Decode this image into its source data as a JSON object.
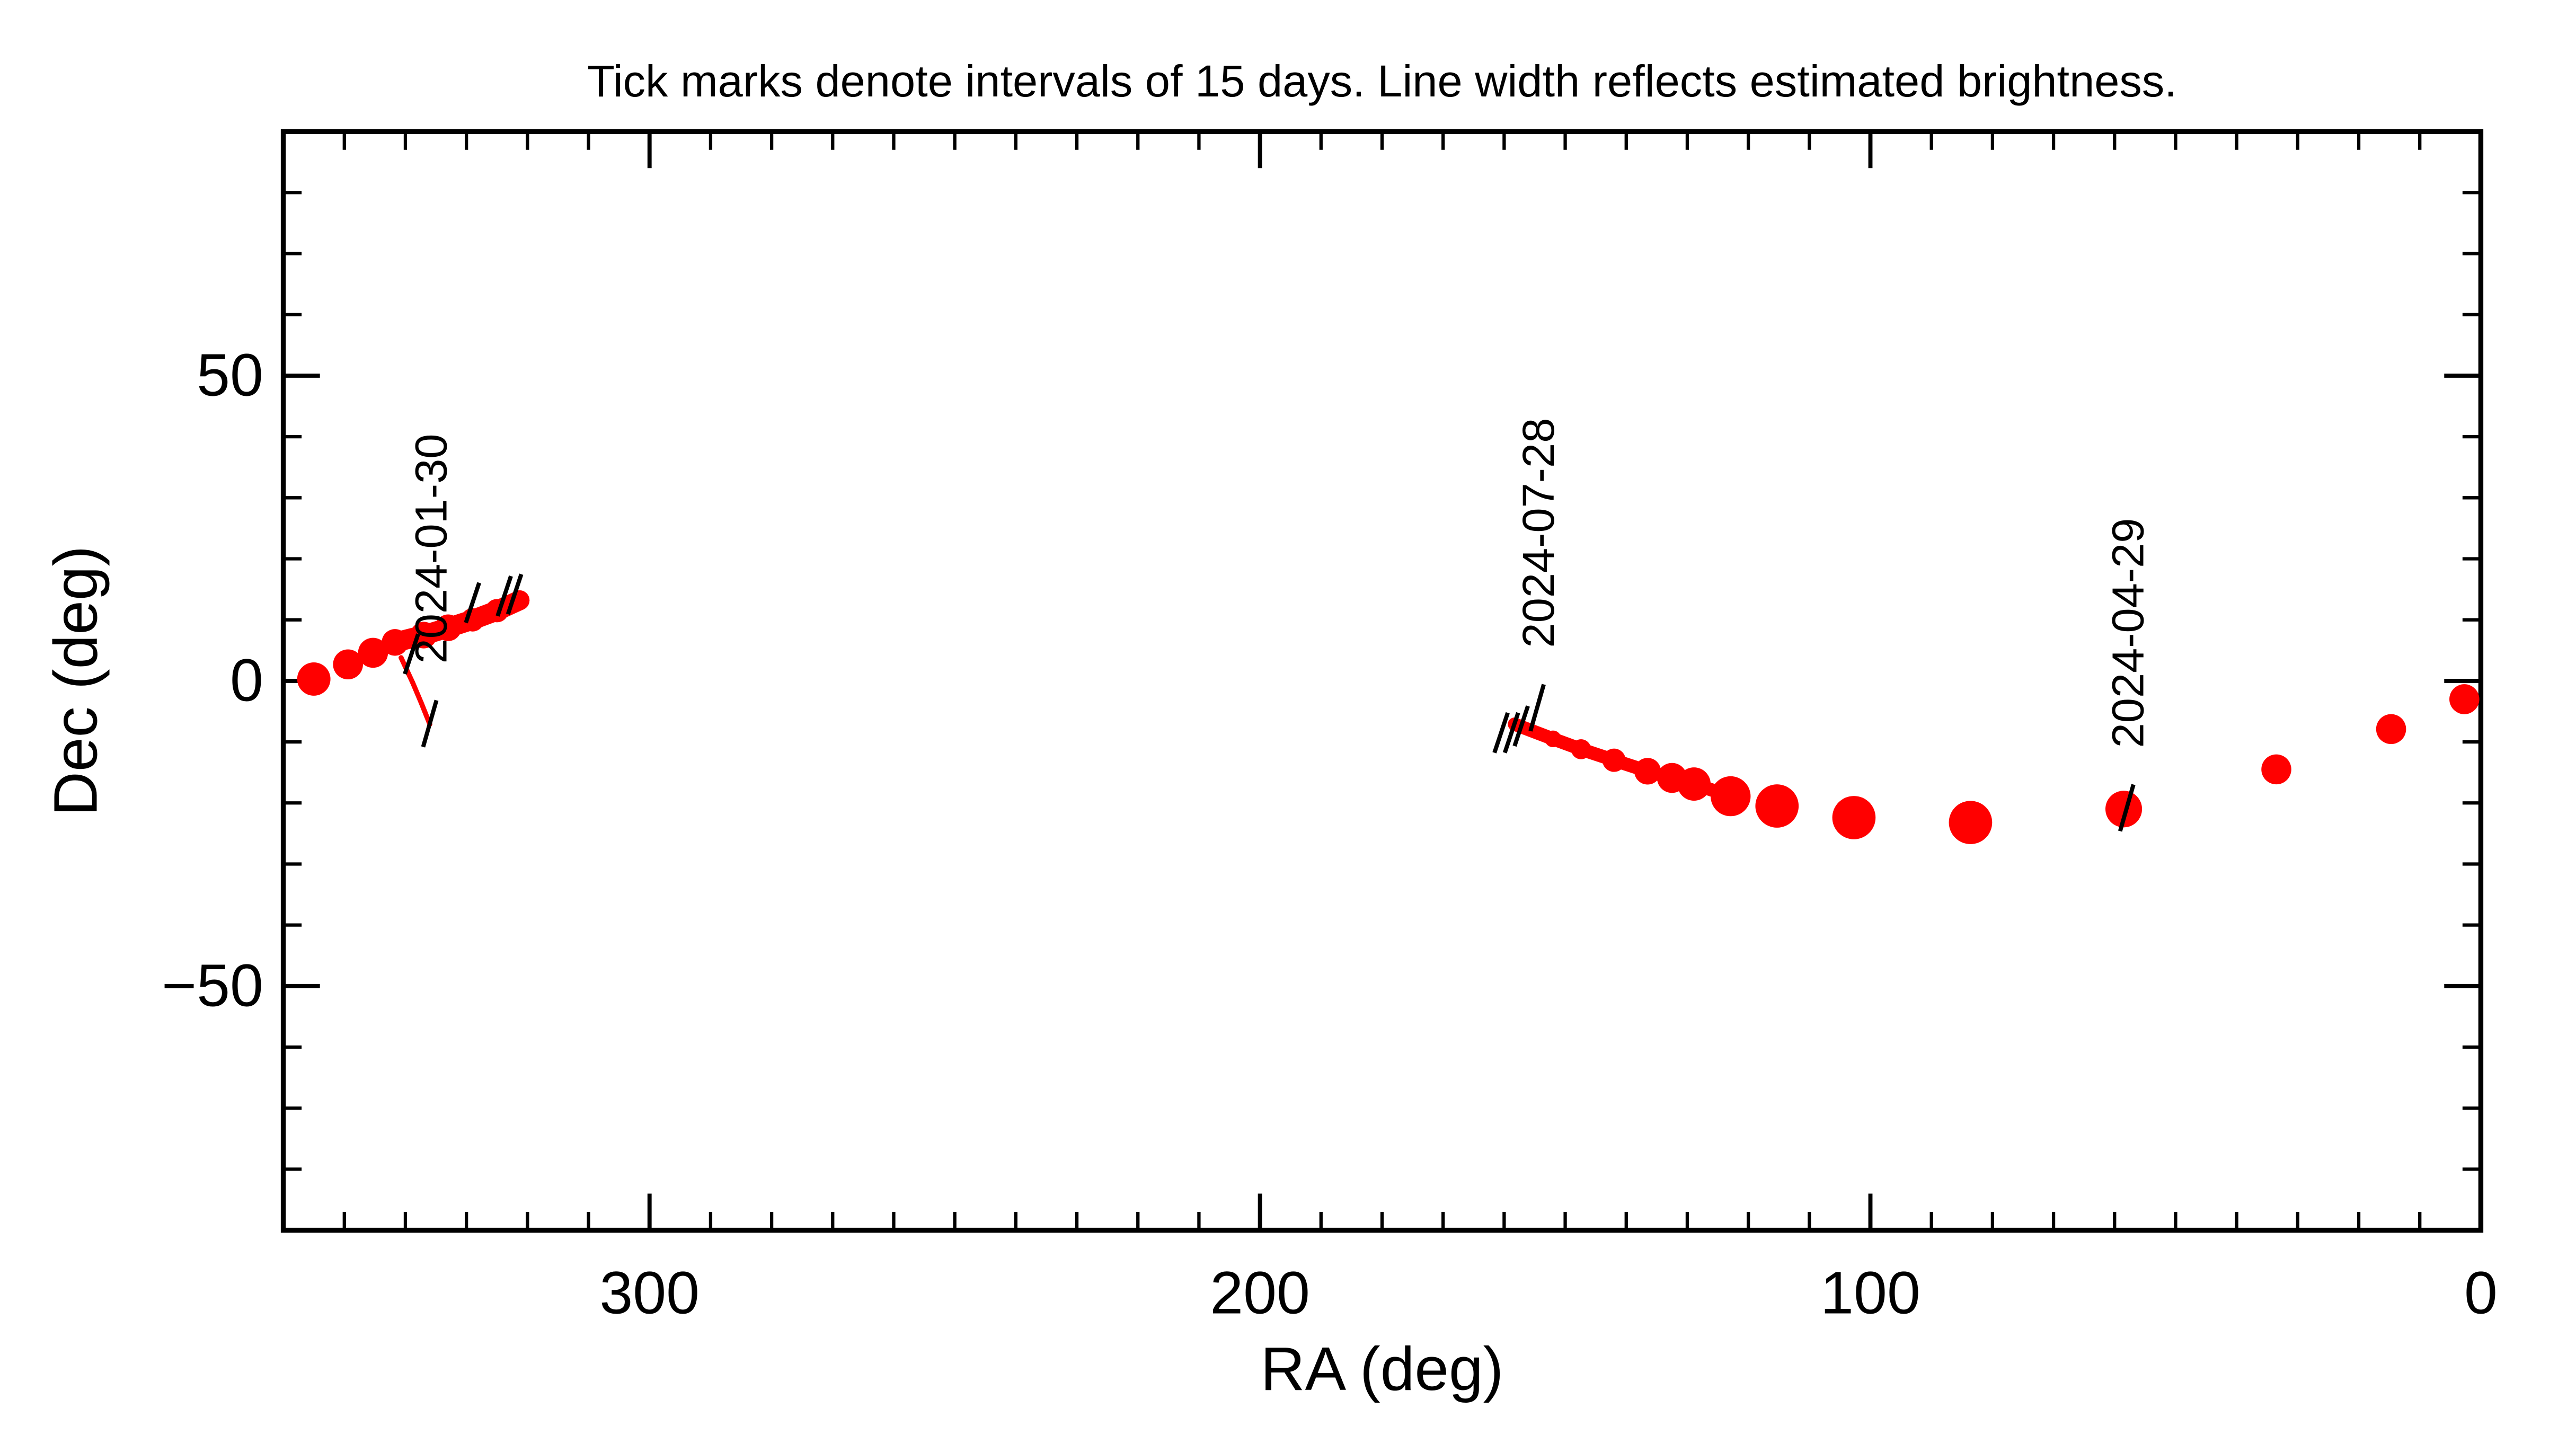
{
  "chart_data": {
    "type": "scatter",
    "title": "Tick marks denote intervals of 15 days.  Line width reflects estimated brightness.",
    "x_label": "RA (deg)",
    "y_label": "Dec (deg)",
    "xlim": [
      360,
      0
    ],
    "ylim": [
      -90,
      90
    ],
    "xticks": [
      300,
      200,
      100,
      0
    ],
    "yticks": [
      {
        "value": -50,
        "label": "−50"
      },
      0,
      50
    ],
    "color": "#ff0000",
    "series": [
      {
        "connected": false,
        "x": [
          355,
          349.4,
          345.3
        ],
        "y": [
          0.3,
          2.7,
          4.6
        ],
        "sizes": [
          10,
          9,
          9
        ]
      },
      {
        "connected": true,
        "x": [
          341.7,
          337,
          333,
          329,
          325,
          321.3
        ],
        "y": [
          6.3,
          7.5,
          8.7,
          10,
          11.5,
          13.2
        ],
        "sizes": [
          8,
          8,
          8,
          7,
          7,
          6
        ]
      },
      {
        "connected": true,
        "x": [
          340.7,
          338.8,
          337.4,
          336
        ],
        "y": [
          3.8,
          -0.3,
          -3.6,
          -7.1
        ],
        "sizes": [
          1.5,
          1.5,
          1.5,
          1.5
        ]
      },
      {
        "connected": true,
        "x": [
          158.3,
          152,
          147.4,
          142,
          136.5,
          132.5,
          128.9,
          122.9
        ],
        "y": [
          -7.1,
          -9.5,
          -11.2,
          -13,
          -14.8,
          -15.9,
          -16.9,
          -18.9
        ],
        "sizes": [
          4,
          5,
          6,
          7,
          8,
          9,
          10,
          12
        ]
      },
      {
        "connected": false,
        "x": [
          115.3,
          102.7,
          83.6,
          58.5,
          33.5,
          14.7,
          2.7
        ],
        "y": [
          -20.5,
          -22.4,
          -23.2,
          -21,
          -14.5,
          -7.9,
          -3
        ],
        "sizes": [
          13,
          13,
          13,
          11,
          9,
          9,
          9
        ]
      }
    ],
    "interval_ticks": {
      "x": [
        339,
        329,
        323.8,
        322.1,
        160.5,
        158.8,
        157.2
      ],
      "y": [
        4.4,
        12.8,
        13.9,
        14.2,
        -8.5,
        -8.5,
        -7.4
      ]
    },
    "annotations": [
      {
        "text": "2024-01-30",
        "x": 336,
        "y": -7
      },
      {
        "text": "2024-07-28",
        "x": 154.6,
        "y": -4.4
      },
      {
        "text": "2024-04-29",
        "x": 58,
        "y": -20.8
      }
    ]
  }
}
